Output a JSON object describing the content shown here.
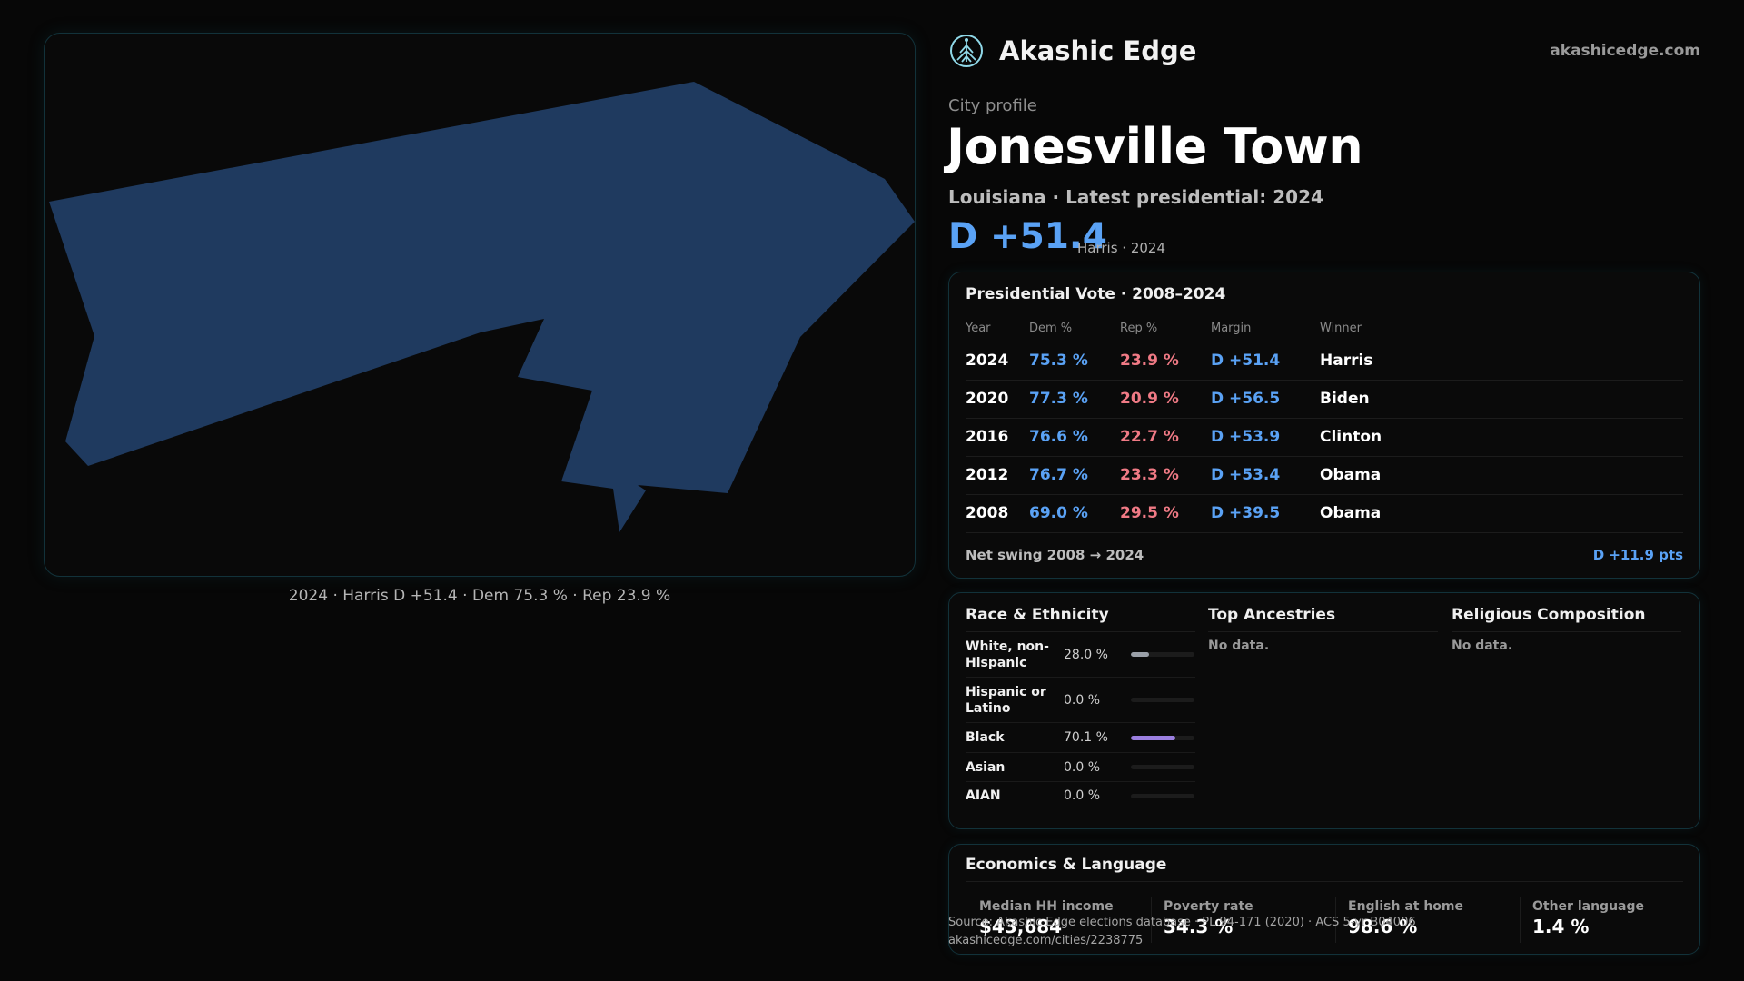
{
  "brand": {
    "name": "Akashic Edge",
    "url": "akashicedge.com",
    "logo_icon": "tree-globe-icon",
    "accent": "#5aa2f5"
  },
  "map": {
    "caption": "2024 · Harris D +51.4 · Dem 75.3 % · Rep 23.9 %",
    "fill_color": "#1f3a5f"
  },
  "profile": {
    "kicker": "City profile",
    "title": "Jonesville Town",
    "subtitle": "Louisiana · Latest presidential: 2024",
    "margin": "D +51.4",
    "margin_note": "Harris · 2024"
  },
  "presidential": {
    "title": "Presidential Vote · 2008–2024",
    "columns": [
      "Year",
      "Dem %",
      "Rep %",
      "Margin",
      "Winner"
    ],
    "rows": [
      {
        "year": "2024",
        "dem": "75.3 %",
        "rep": "23.9 %",
        "margin": "D +51.4",
        "winner": "Harris"
      },
      {
        "year": "2020",
        "dem": "77.3 %",
        "rep": "20.9 %",
        "margin": "D +56.5",
        "winner": "Biden"
      },
      {
        "year": "2016",
        "dem": "76.6 %",
        "rep": "22.7 %",
        "margin": "D +53.9",
        "winner": "Clinton"
      },
      {
        "year": "2012",
        "dem": "76.7 %",
        "rep": "23.3 %",
        "margin": "D +53.4",
        "winner": "Obama"
      },
      {
        "year": "2008",
        "dem": "69.0 %",
        "rep": "29.5 %",
        "margin": "D +39.5",
        "winner": "Obama"
      }
    ],
    "swing_label": "Net swing 2008 → 2024",
    "swing_value": "D +11.9 pts",
    "colors": {
      "dem": "#5aa2f5",
      "rep": "#f07a85"
    }
  },
  "demographics": {
    "race_title": "Race & Ethnicity",
    "race": [
      {
        "label": "White, non-Hispanic",
        "pct": "28.0 %",
        "share": 0.28,
        "color": "#9aa0a8"
      },
      {
        "label": "Hispanic or Latino",
        "pct": "0.0 %",
        "share": 0.0,
        "color": "#9aa0a8"
      },
      {
        "label": "Black",
        "pct": "70.1 %",
        "share": 0.701,
        "color": "#9b7fe0"
      },
      {
        "label": "Asian",
        "pct": "0.0 %",
        "share": 0.0,
        "color": "#9aa0a8"
      },
      {
        "label": "AIAN",
        "pct": "0.0 %",
        "share": 0.0,
        "color": "#9aa0a8"
      }
    ],
    "ancestry_title": "Top Ancestries",
    "ancestry_text": "No data.",
    "religion_title": "Religious Composition",
    "religion_text": "No data."
  },
  "economics": {
    "title": "Economics & Language",
    "stats": [
      {
        "label": "Median HH income",
        "value": "$43,684"
      },
      {
        "label": "Poverty rate",
        "value": "34.3 %"
      },
      {
        "label": "English at home",
        "value": "98.6 %"
      },
      {
        "label": "Other language",
        "value": "1.4 %"
      }
    ]
  },
  "source": {
    "line1": "Source: Akashic Edge elections database · PL 94-171 (2020) · ACS 5-yr B04006",
    "line2": "akashicedge.com/cities/2238775"
  }
}
